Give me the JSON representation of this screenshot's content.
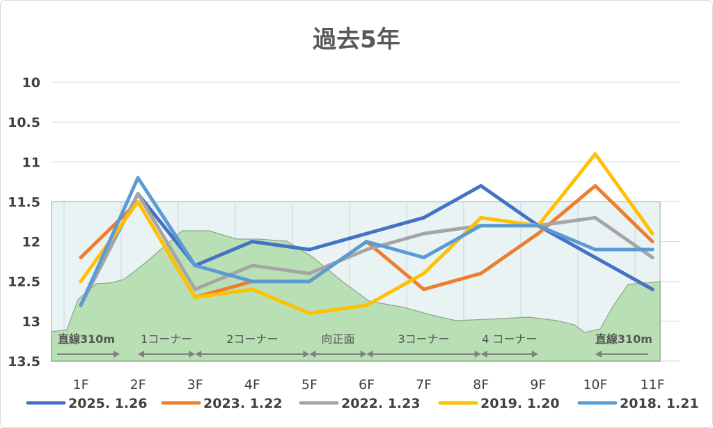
{
  "chart_data": {
    "type": "line",
    "title": "過去5年",
    "categories": [
      "1F",
      "2F",
      "3F",
      "4F",
      "5F",
      "6F",
      "7F",
      "8F",
      "9F",
      "10F",
      "11F"
    ],
    "y_ticks": [
      "10",
      "10.5",
      "11",
      "11.5",
      "12",
      "12.5",
      "13",
      "13.5"
    ],
    "ylim": [
      10,
      13.5
    ],
    "y_inverted": true,
    "grid": true,
    "legend_position": "bottom",
    "series": [
      {
        "name": "2025. 1.26",
        "color": "#4472C4",
        "values": [
          12.8,
          11.4,
          12.3,
          12.0,
          12.1,
          11.9,
          11.7,
          11.3,
          11.8,
          12.2,
          12.6
        ]
      },
      {
        "name": "2023. 1.22",
        "color": "#ED7D31",
        "values": [
          12.2,
          11.5,
          12.7,
          12.5,
          12.5,
          12.0,
          12.6,
          12.4,
          11.9,
          11.3,
          12.0
        ]
      },
      {
        "name": "2022. 1.23",
        "color": "#A5A5A5",
        "values": [
          12.8,
          11.4,
          12.6,
          12.3,
          12.4,
          12.1,
          11.9,
          11.8,
          11.8,
          11.7,
          12.2
        ]
      },
      {
        "name": "2019. 1.20",
        "color": "#FFC000",
        "values": [
          12.5,
          11.5,
          12.7,
          12.6,
          12.9,
          12.8,
          12.4,
          11.7,
          11.8,
          10.9,
          11.9
        ]
      },
      {
        "name": "2018. 1.21",
        "color": "#5B9BD5",
        "values": [
          12.8,
          11.2,
          12.3,
          12.5,
          12.5,
          12.0,
          12.2,
          11.8,
          11.8,
          12.1,
          12.1
        ]
      }
    ],
    "course_sections": [
      {
        "label": "直線310m",
        "bold": true,
        "from": "1F",
        "to": "2F"
      },
      {
        "label": "1コーナー",
        "bold": false,
        "from": "2F",
        "to": "3F"
      },
      {
        "label": "2コーナー",
        "bold": false,
        "from": "3F",
        "to": "5F"
      },
      {
        "label": "向正面",
        "bold": false,
        "from": "5F",
        "to": "6F"
      },
      {
        "label": "3コーナー",
        "bold": false,
        "from": "6F",
        "to": "8F"
      },
      {
        "label": "4 コーナー",
        "bold": false,
        "from": "8F",
        "to": "9F"
      },
      {
        "label": "直線310m",
        "bold": true,
        "from": "10F",
        "to": "11F"
      }
    ]
  },
  "colors": {
    "gridline": "#d9d9d9",
    "course_panel_bg": "#e9f3f4",
    "course_panel_border": "#bfbfbf",
    "terrain_fill": "#b9e0b4",
    "terrain_stroke": "#8fa38d",
    "arrow": "#7f7f7f"
  }
}
